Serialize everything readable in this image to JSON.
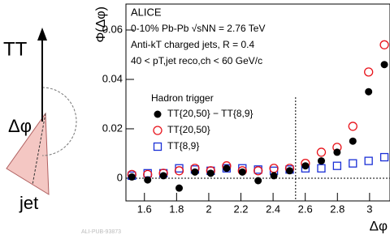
{
  "diagram": {
    "trigger": "TT",
    "angle": "Δφ",
    "jet": "jet"
  },
  "chart_data": {
    "type": "scatter",
    "xlabel": "Δφ",
    "ylabel": "Φ(Δφ)",
    "annotations": [
      "ALICE",
      "0-10% Pb-Pb √sNN = 2.76 TeV",
      "Anti-kT charged jets, R = 0.4",
      "40 < pT,jet reco,ch < 60 GeV/c"
    ],
    "legend_title": "Hadron trigger",
    "watermark": "ALI-PUB-93873",
    "x": [
      1.522,
      1.62,
      1.718,
      1.816,
      1.914,
      2.012,
      2.111,
      2.209,
      2.307,
      2.405,
      2.503,
      2.601,
      2.7,
      2.798,
      2.896,
      2.994,
      3.092
    ],
    "series": [
      {
        "name": "TT{20,50} − TT{8,9}",
        "color": "#000000",
        "marker": "filled-circle",
        "values": [
          0.0005,
          -0.0007,
          0.001,
          -0.004,
          0.0025,
          0.002,
          0.004,
          0.0025,
          -0.001,
          0.001,
          0.003,
          0.005,
          0.007,
          0.0105,
          0.015,
          0.035,
          0.046
        ]
      },
      {
        "name": "TT{20,50}",
        "color": "#e8141c",
        "marker": "open-circle",
        "values": [
          0.0015,
          0.0015,
          0.002,
          0.003,
          0.004,
          0.003,
          0.005,
          0.003,
          0.003,
          0.004,
          0.004,
          0.006,
          0.0105,
          0.0125,
          0.021,
          0.043,
          0.054
        ]
      },
      {
        "name": "TT{8,9}",
        "color": "#1a2fd6",
        "marker": "open-square",
        "values": [
          0.001,
          0.002,
          0.002,
          0.004,
          0.0035,
          0.003,
          0.004,
          0.004,
          0.0035,
          0.003,
          0.0035,
          0.004,
          0.004,
          0.005,
          0.006,
          0.007,
          0.0085
        ]
      }
    ],
    "xlim": [
      1.485,
      3.127
    ],
    "ylim": [
      -0.0092,
      0.0705
    ],
    "xticks": [
      1.6,
      1.8,
      2,
      2.2,
      2.4,
      2.6,
      2.8,
      3
    ],
    "yticks": [
      0,
      0.02,
      0.04,
      0.06
    ],
    "vline": 2.54,
    "hline": 0
  }
}
